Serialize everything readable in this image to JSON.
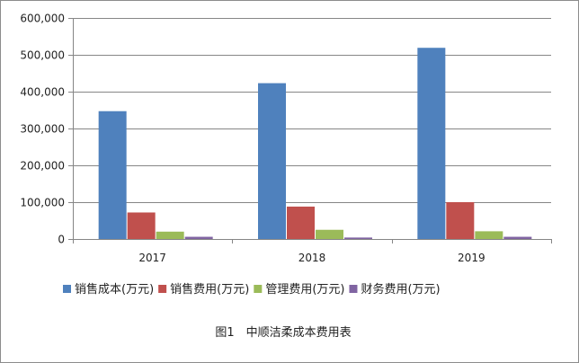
{
  "chart_data": {
    "type": "bar",
    "categories": [
      "2017",
      "2018",
      "2019"
    ],
    "series": [
      {
        "name": "销售成本(万元)",
        "values": [
          347000,
          423000,
          519000
        ],
        "color": "#4f81bd"
      },
      {
        "name": "销售费用(万元)",
        "values": [
          72000,
          88000,
          100000
        ],
        "color": "#c0504d"
      },
      {
        "name": "管理费用(万元)",
        "values": [
          20000,
          25000,
          21000
        ],
        "color": "#9bbb59"
      },
      {
        "name": "财务费用(万元)",
        "values": [
          6000,
          4000,
          6000
        ],
        "color": "#8064a2"
      }
    ],
    "ylim": [
      0,
      600000
    ],
    "yticks": [
      "0",
      "100,000",
      "200,000",
      "300,000",
      "400,000",
      "500,000",
      "600,000"
    ],
    "ytick_values": [
      0,
      100000,
      200000,
      300000,
      400000,
      500000,
      600000
    ],
    "grid": true,
    "legend_position": "bottom",
    "caption": "图1　中顺洁柔成本费用表"
  }
}
